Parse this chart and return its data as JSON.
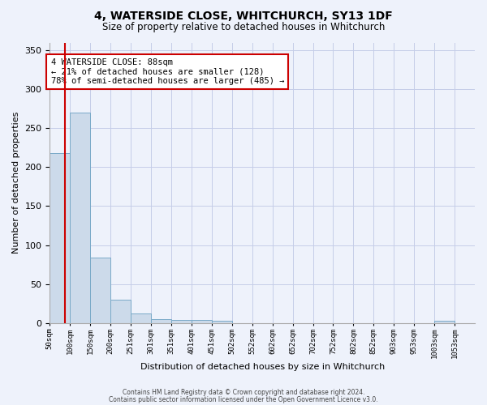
{
  "title": "4, WATERSIDE CLOSE, WHITCHURCH, SY13 1DF",
  "subtitle": "Size of property relative to detached houses in Whitchurch",
  "xlabel": "Distribution of detached houses by size in Whitchurch",
  "ylabel": "Number of detached properties",
  "bar_color": "#ccdaea",
  "bar_edge_color": "#7aaac8",
  "background_color": "#eef2fb",
  "grid_color": "#c5cde8",
  "categories": [
    "50sqm",
    "100sqm",
    "150sqm",
    "200sqm",
    "251sqm",
    "301sqm",
    "351sqm",
    "401sqm",
    "451sqm",
    "502sqm",
    "552sqm",
    "602sqm",
    "652sqm",
    "702sqm",
    "752sqm",
    "802sqm",
    "852sqm",
    "903sqm",
    "953sqm",
    "1003sqm",
    "1053sqm"
  ],
  "values": [
    218,
    270,
    84,
    30,
    12,
    5,
    4,
    4,
    3,
    0,
    0,
    0,
    0,
    0,
    0,
    0,
    0,
    0,
    0,
    3,
    0
  ],
  "ylim": [
    0,
    360
  ],
  "yticks": [
    0,
    50,
    100,
    150,
    200,
    250,
    300,
    350
  ],
  "property_line_color": "#cc0000",
  "property_line_x": 0.76,
  "annotation_text": "4 WATERSIDE CLOSE: 88sqm\n← 21% of detached houses are smaller (128)\n78% of semi-detached houses are larger (485) →",
  "annotation_box_edge_color": "#cc0000",
  "annotation_box_face_color": "#ffffff",
  "footer_line1": "Contains HM Land Registry data © Crown copyright and database right 2024.",
  "footer_line2": "Contains public sector information licensed under the Open Government Licence v3.0.",
  "title_fontsize": 10,
  "subtitle_fontsize": 8.5,
  "ylabel_fontsize": 8,
  "xlabel_fontsize": 8,
  "ytick_fontsize": 8,
  "xtick_fontsize": 6.5,
  "annot_fontsize": 7.5,
  "footer_fontsize": 5.5
}
